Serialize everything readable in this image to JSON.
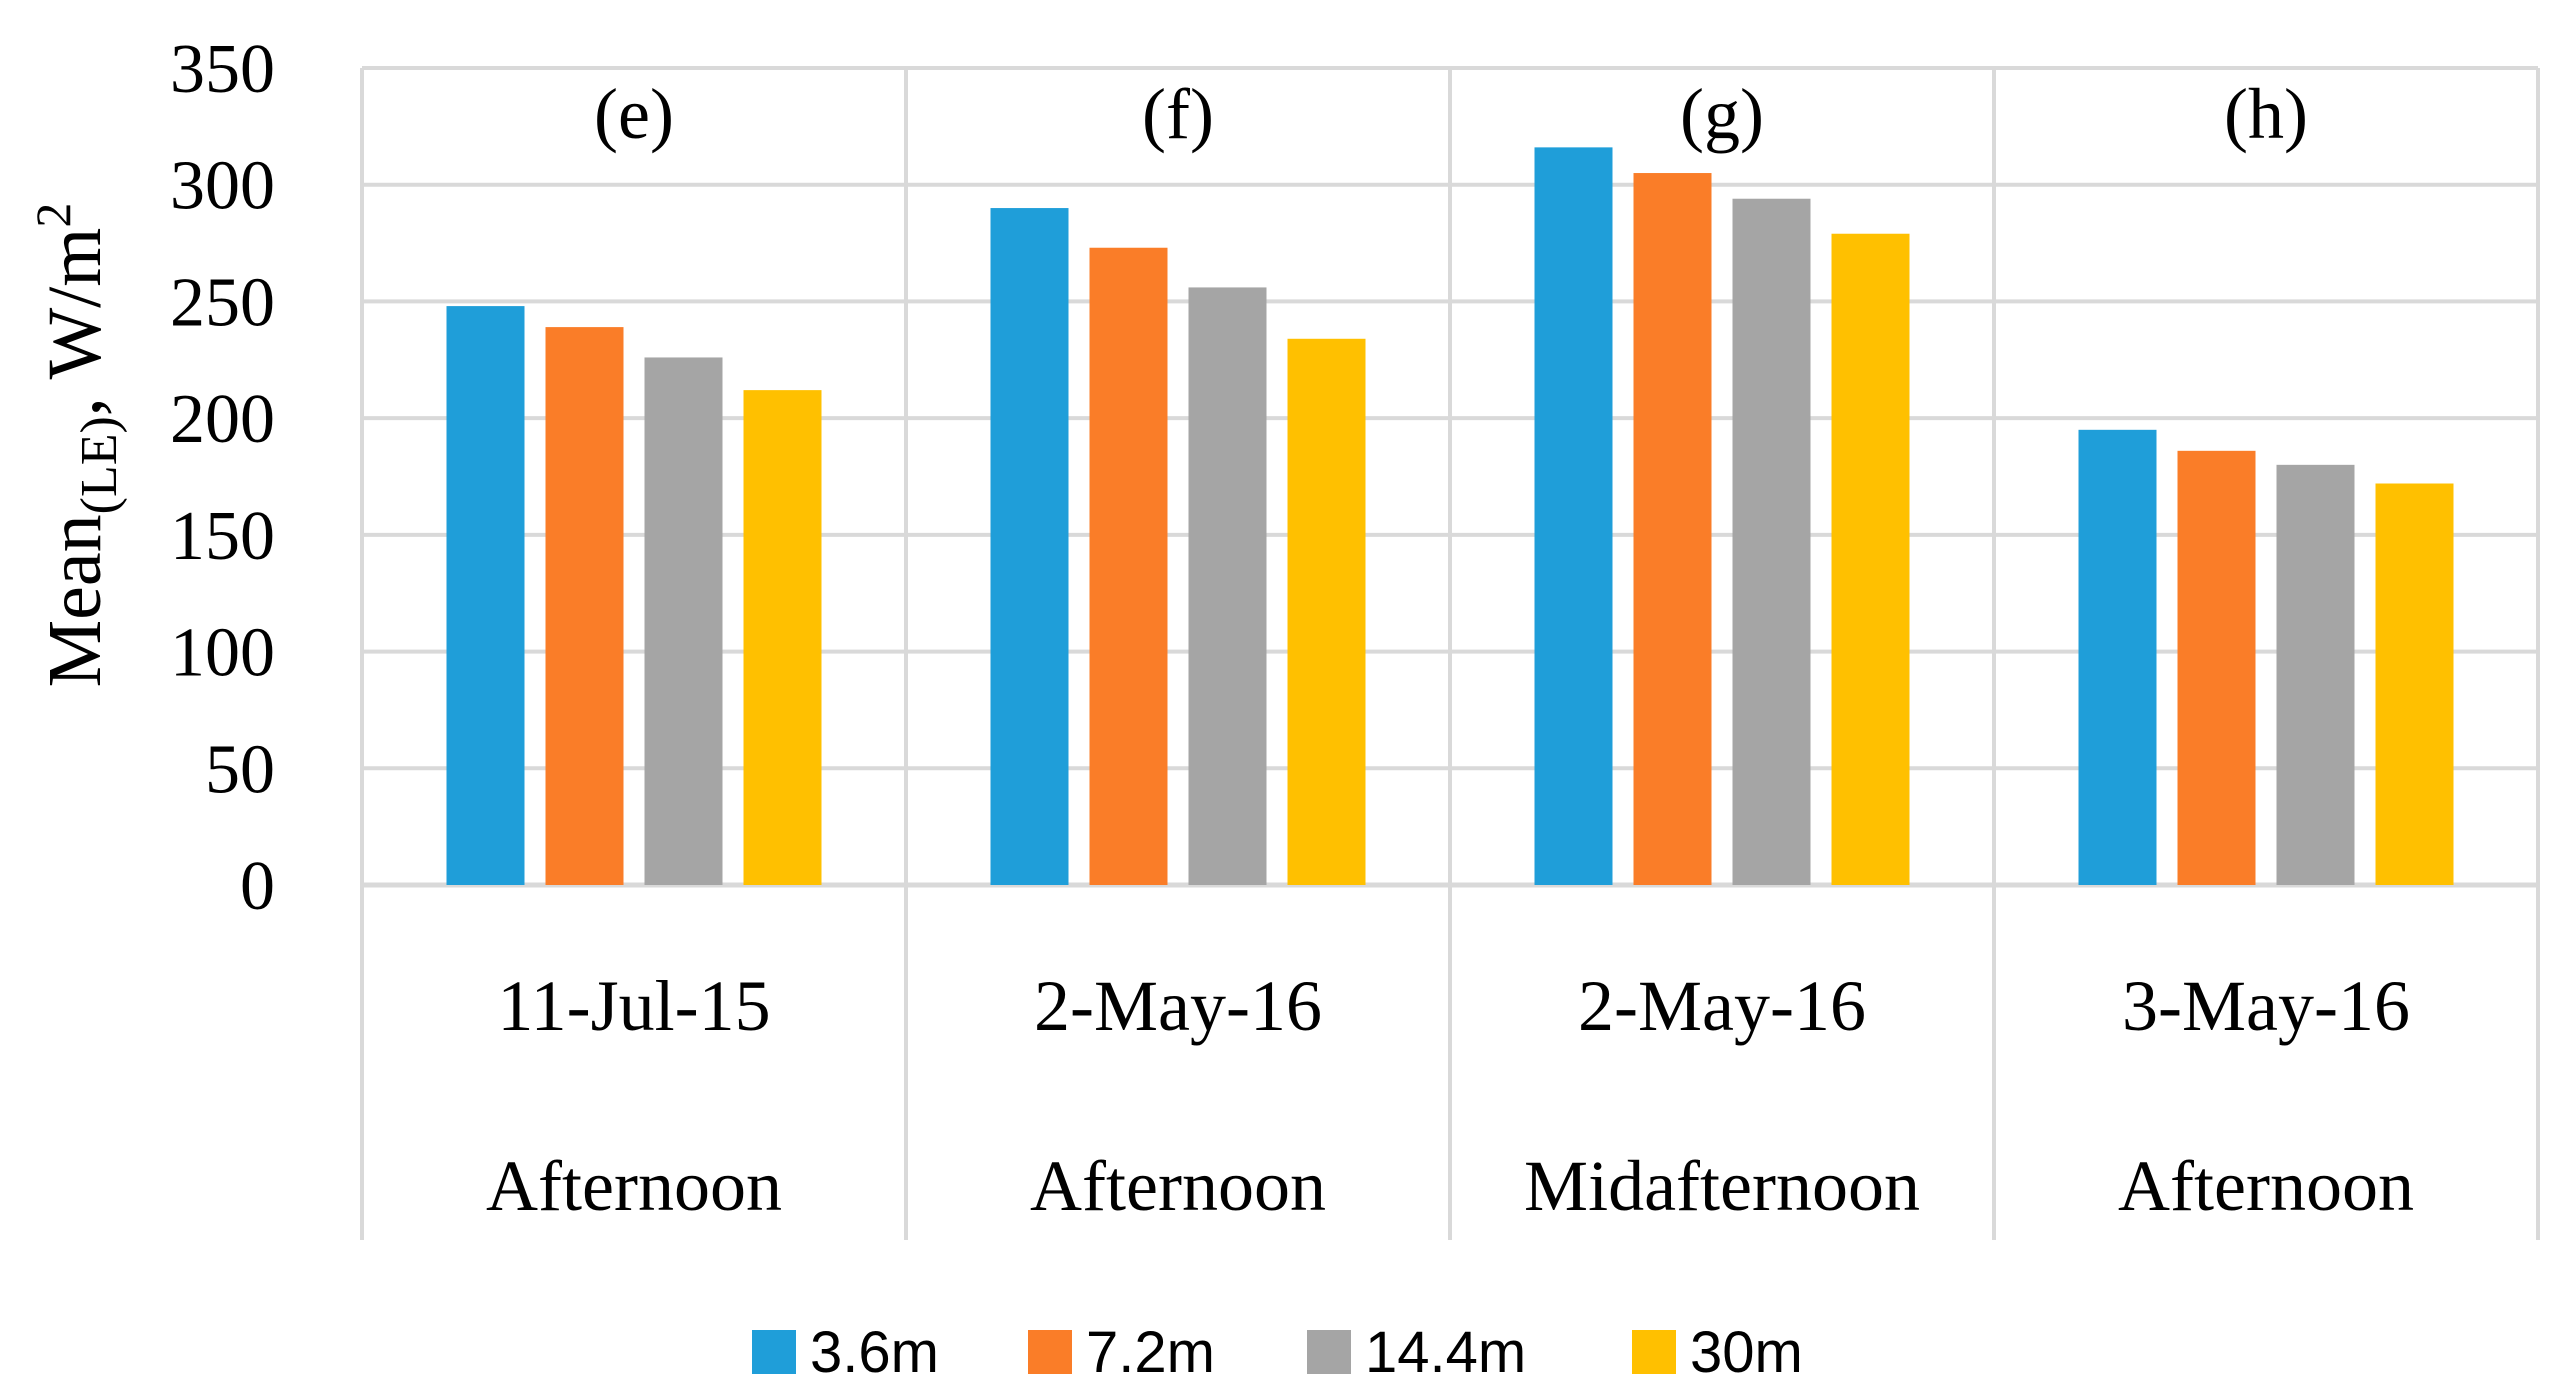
{
  "chart_data": {
    "type": "bar",
    "ylabel": {
      "main": "Mean",
      "sub": "(LE)",
      "unit_base": ", W/m",
      "unit_sup": "2"
    },
    "ylim": [
      0,
      350
    ],
    "yticks": [
      "0",
      "50",
      "100",
      "150",
      "200",
      "250",
      "300",
      "350"
    ],
    "grid": true,
    "legend_position": "bottom",
    "groups": [
      {
        "panel": "(e)",
        "date": "11-Jul-15",
        "time": "Afternoon"
      },
      {
        "panel": "(f)",
        "date": "2-May-16",
        "time": "Afternoon"
      },
      {
        "panel": "(g)",
        "date": "2-May-16",
        "time": "Midafternoon"
      },
      {
        "panel": "(h)",
        "date": "3-May-16",
        "time": "Afternoon"
      }
    ],
    "series": [
      {
        "name": "3.6m",
        "color": "#1F9ED9",
        "values": [
          248,
          290,
          316,
          195
        ]
      },
      {
        "name": "7.2m",
        "color": "#FA7D28",
        "values": [
          239,
          273,
          305,
          186
        ]
      },
      {
        "name": "14.4m",
        "color": "#A5A5A5",
        "values": [
          226,
          256,
          294,
          180
        ]
      },
      {
        "name": "30m",
        "color": "#FFC000",
        "values": [
          212,
          234,
          279,
          172
        ]
      }
    ]
  }
}
